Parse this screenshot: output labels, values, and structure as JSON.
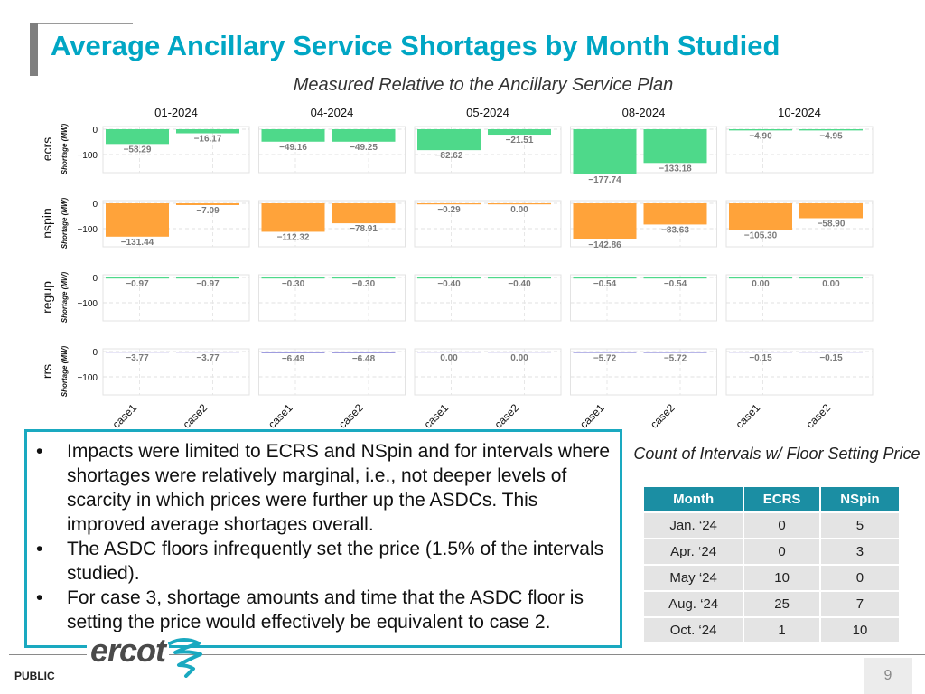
{
  "header": {
    "title": "Average Ancillary Service Shortages by Month Studied",
    "subtitle": "Measured Relative to the Ancillary Service Plan"
  },
  "chart_data": {
    "type": "bar",
    "title": "Measured Relative to the Ancillary Service Plan",
    "months": [
      "01-2024",
      "04-2024",
      "05-2024",
      "08-2024",
      "10-2024"
    ],
    "categories": [
      "case1",
      "case2"
    ],
    "services": [
      {
        "name": "ecrs",
        "ylabel": "Shortage (MW)",
        "color": "#4ed98a",
        "values": [
          [
            -58.29,
            -16.17
          ],
          [
            -49.16,
            -49.25
          ],
          [
            -82.62,
            -21.51
          ],
          [
            -177.74,
            -133.18
          ],
          [
            -4.9,
            -4.95
          ]
        ]
      },
      {
        "name": "nspin",
        "ylabel": "Shortage (MW)",
        "color": "#ffa33a",
        "values": [
          [
            -131.44,
            -7.09
          ],
          [
            -112.32,
            -78.91
          ],
          [
            -0.29,
            0.0
          ],
          [
            -142.86,
            -83.63
          ],
          [
            -105.3,
            -58.9
          ]
        ]
      },
      {
        "name": "regup",
        "ylabel": "Shortage (MW)",
        "color": "#4ed98a",
        "values": [
          [
            -0.97,
            -0.97
          ],
          [
            -0.3,
            -0.3
          ],
          [
            -0.4,
            -0.4
          ],
          [
            -0.54,
            -0.54
          ],
          [
            0.0,
            0.0
          ]
        ]
      },
      {
        "name": "rrs",
        "ylabel": "Shortage (MW)",
        "color": "#8a86d8",
        "values": [
          [
            -3.77,
            -3.77
          ],
          [
            -6.49,
            -6.48
          ],
          [
            0.0,
            0.0
          ],
          [
            -5.72,
            -5.72
          ],
          [
            -0.15,
            -0.15
          ]
        ]
      }
    ],
    "labels": [
      [
        "−58.29",
        "−16.17",
        "−49.16",
        "−49.25",
        "−82.62",
        "−21.51",
        "−177.74",
        "−133.18",
        "−4.90",
        "−4.95"
      ],
      [
        "−131.44",
        "−7.09",
        "−112.32",
        "−78.91",
        "−0.29",
        "0.00",
        "−142.86",
        "−83.63",
        "−105.30",
        "−58.90"
      ],
      [
        "−0.97",
        "−0.97",
        "−0.30",
        "−0.30",
        "−0.40",
        "−0.40",
        "−0.54",
        "−0.54",
        "0.00",
        "0.00"
      ],
      [
        "−3.77",
        "−3.77",
        "−6.49",
        "−6.48",
        "0.00",
        "0.00",
        "−5.72",
        "−5.72",
        "−0.15",
        "−0.15"
      ]
    ],
    "yticks": [
      0,
      -100
    ],
    "ytick_labels": [
      "0",
      "−100"
    ],
    "ylim": [
      -180,
      0
    ]
  },
  "bullets": [
    "Impacts were limited to ECRS and NSpin and for intervals where shortages were relatively marginal, i.e., not deeper levels of scarcity in which prices were further up the ASDCs. This improved average shortages overall.",
    "The ASDC floors infrequently set the price (1.5% of the intervals studied).",
    "For case 3, shortage amounts and time that the ASDC floor is setting the price would effectively be equivalent to case 2."
  ],
  "table": {
    "caption": "Count of Intervals w/ Floor Setting Price",
    "headers": [
      "Month",
      "ECRS",
      "NSpin"
    ],
    "rows": [
      [
        "Jan. ‘24",
        "0",
        "5"
      ],
      [
        "Apr. ‘24",
        "0",
        "3"
      ],
      [
        "May ‘24",
        "10",
        "0"
      ],
      [
        "Aug. ‘24",
        "25",
        "7"
      ],
      [
        "Oct. ‘24",
        "1",
        "10"
      ]
    ]
  },
  "footer": {
    "logo": "ercot",
    "label": "PUBLIC",
    "page_number": "9"
  }
}
